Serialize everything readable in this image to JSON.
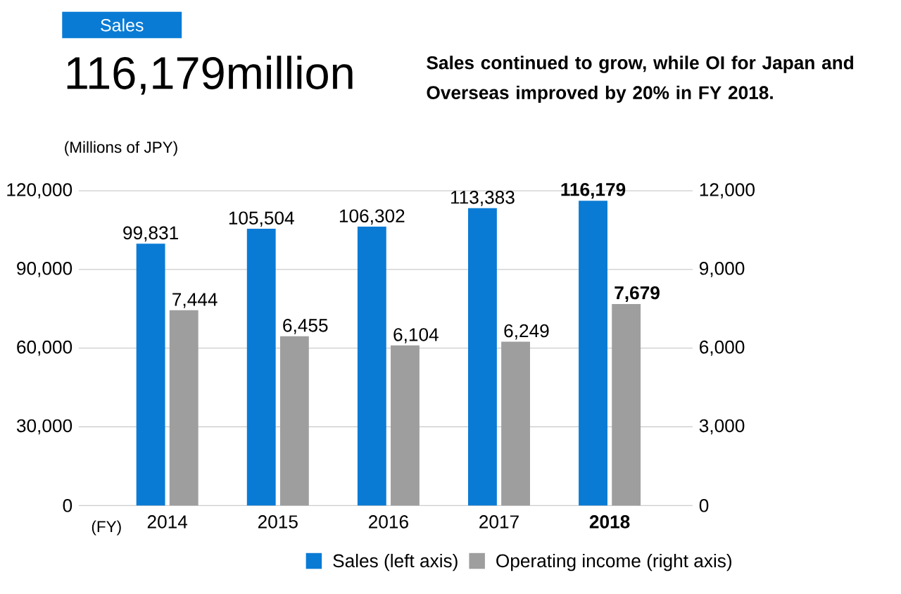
{
  "chart_data": {
    "type": "bar",
    "title": "Sales",
    "subtitle": "116,179million",
    "ylabel": "(Millions of JPY)",
    "xlabel": "(FY)",
    "annotations": [
      "Sales continued to grow, while OI for Japan and Overseas improved by 20% in FY 2018."
    ],
    "categories": [
      "2014",
      "2015",
      "2016",
      "2017",
      "**2018**"
    ],
    "series": [
      {
        "name": "Sales (left axis)",
        "color": "#0a7bd4",
        "values": [
          99831,
          105504,
          106302,
          113383,
          116179
        ],
        "value_labels": [
          "99,831",
          "105,504",
          "106,302",
          "113,383",
          "**116,179**"
        ]
      },
      {
        "name": "Operating income (right axis)",
        "color": "#9e9e9e",
        "axis": "y2",
        "values": [
          7444,
          6455,
          6104,
          6249,
          7679
        ],
        "value_labels": [
          "7,444",
          "6,455",
          "6,104",
          "6,249",
          "**7,679**"
        ]
      }
    ],
    "ylim": [
      0,
      120000
    ],
    "yticks": [
      {
        "value": 0,
        "label": "0"
      },
      {
        "value": 30000,
        "label": "30,000"
      },
      {
        "value": 60000,
        "label": "60,000"
      },
      {
        "value": 90000,
        "label": "90,000"
      },
      {
        "value": 120000,
        "label": "120,000"
      }
    ],
    "y2lim": [
      0,
      12000
    ],
    "y2ticks": [
      {
        "value": 0,
        "label": "0"
      },
      {
        "value": 3000,
        "label": "3,000"
      },
      {
        "value": 6000,
        "label": "6,000"
      },
      {
        "value": 9000,
        "label": "9,000"
      },
      {
        "value": 12000,
        "label": "12,000"
      }
    ],
    "grid": "y",
    "legend": "bottom right"
  }
}
